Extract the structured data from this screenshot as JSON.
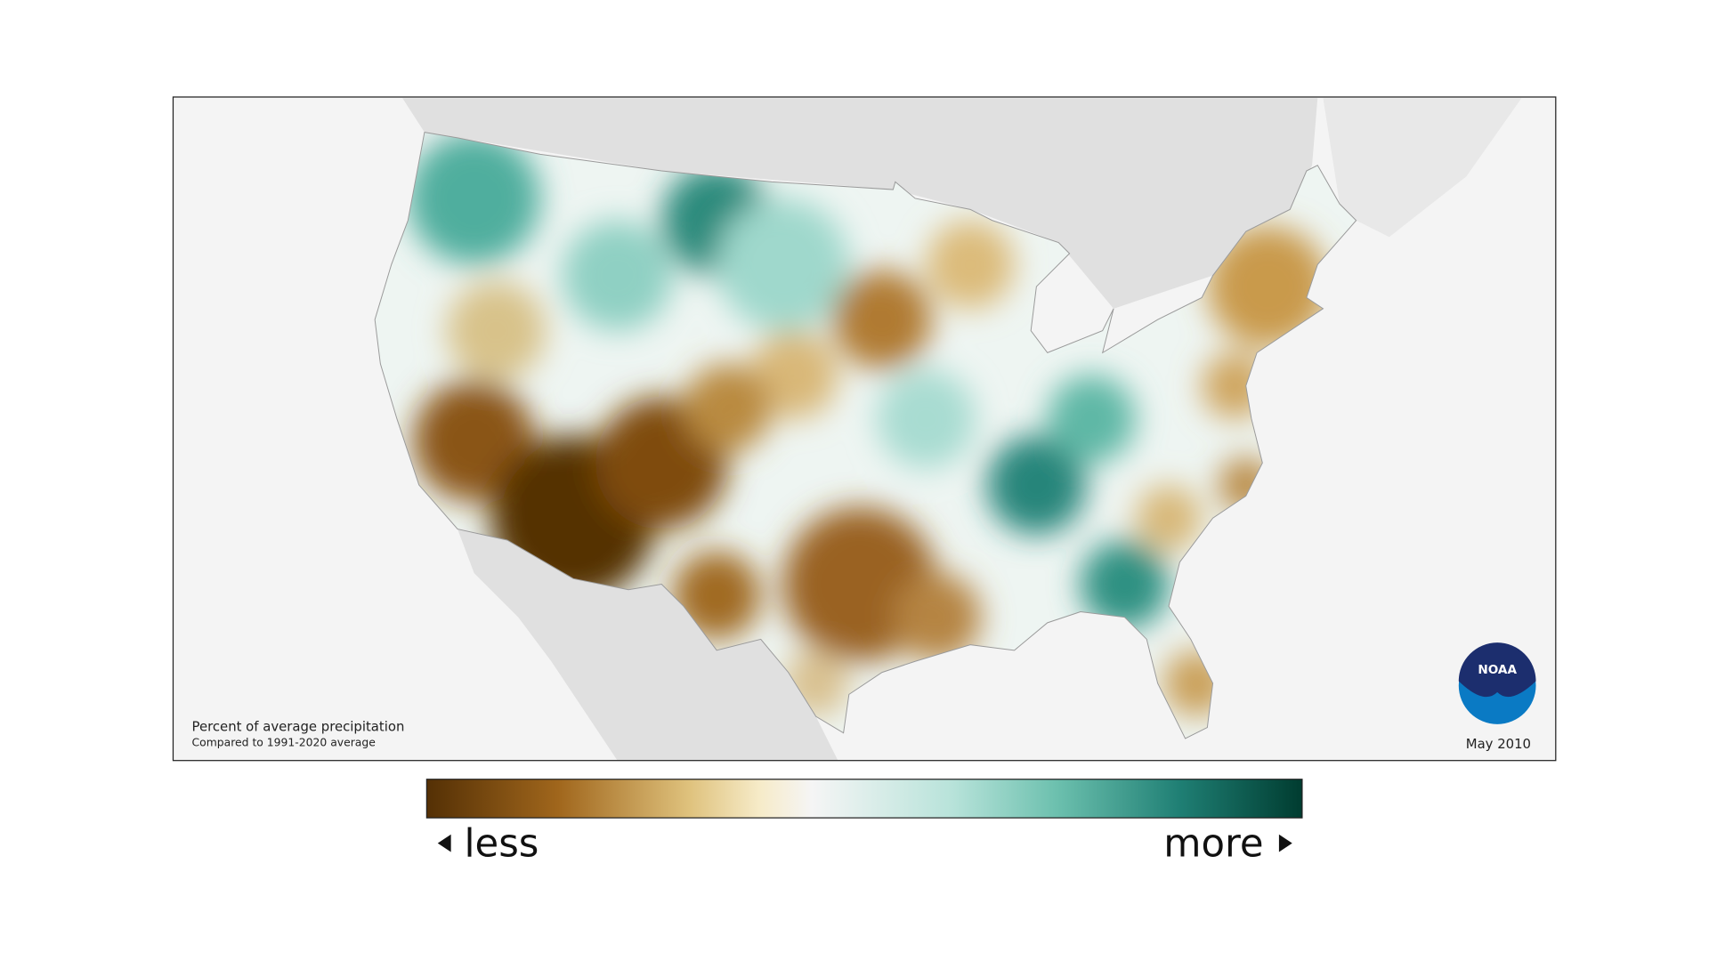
{
  "map": {
    "caption": {
      "title": "Percent of average precipitation",
      "subtitle": "Compared to 1991-2020 average"
    },
    "date": "May 2010",
    "logo": "NOAA"
  },
  "legend": {
    "less": "less",
    "more": "more"
  }
}
